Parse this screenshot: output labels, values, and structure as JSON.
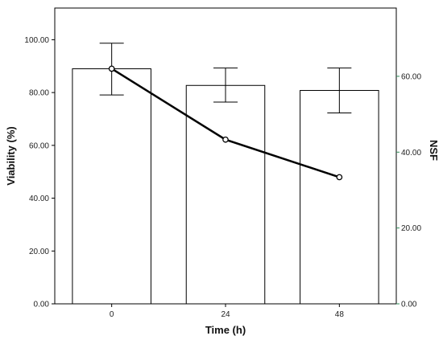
{
  "chart_data": {
    "type": "bar",
    "xlabel": "Time (h)",
    "ylabel": "Viability (%)",
    "y2label": "NSF",
    "categories": [
      "0",
      "24",
      "48"
    ],
    "ylim": [
      0,
      112
    ],
    "y2lim": [
      0,
      78
    ],
    "yticks": [
      0,
      20,
      40,
      60,
      80,
      100
    ],
    "yticks_labels": [
      "0.00",
      "20.00",
      "40.00",
      "60.00",
      "80.00",
      "100.00"
    ],
    "y2ticks": [
      0,
      20,
      40,
      60
    ],
    "y2ticks_labels": [
      "0.00",
      "20.00",
      "40.00",
      "60.00"
    ],
    "grid": false,
    "series": [
      {
        "kind": "bar",
        "axis": "left",
        "values": [
          89.0,
          82.7,
          80.8
        ],
        "error_low": [
          79.1,
          76.4,
          72.3
        ],
        "error_high": [
          98.7,
          89.3,
          89.3
        ],
        "fill": "#ffffff",
        "stroke": "#000000"
      },
      {
        "kind": "line",
        "axis": "right",
        "values": [
          62.0,
          43.3,
          33.4
        ],
        "color": "#000000"
      }
    ],
    "colors": {
      "right_axis_ticks": "#2e8b57"
    }
  }
}
